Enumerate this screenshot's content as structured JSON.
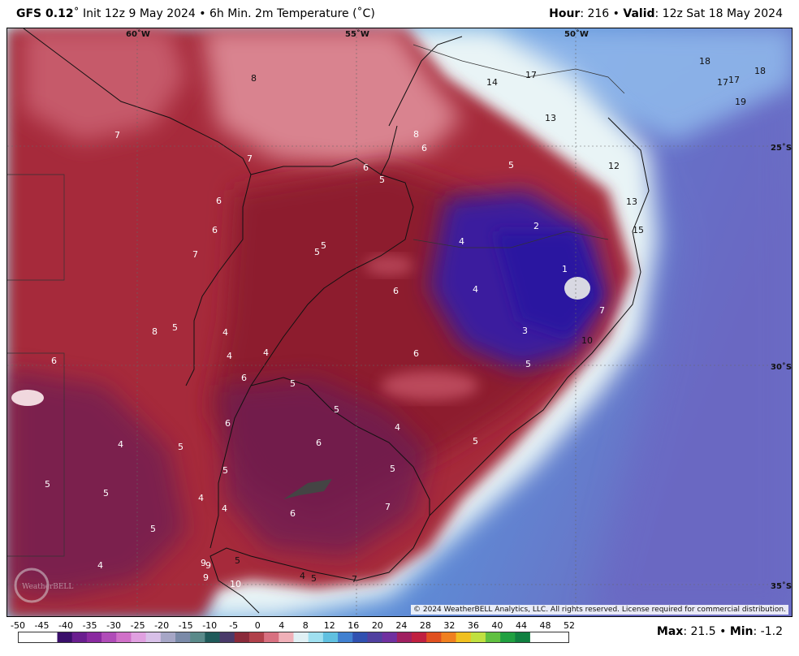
{
  "header": {
    "model": "GFS 0.12",
    "run": "˚ Init 12z 9 May 2024 • 6h Min. 2m Temperature (˚C)",
    "hour_label": "Hour",
    "hour_value": ": 216 • ",
    "valid_label": "Valid",
    "valid_value": ": 12z Sat 18 May 2024"
  },
  "map": {
    "lon_labels": [
      "60˚W",
      "55˚W",
      "50˚W"
    ],
    "lat_labels": [
      "25˚S",
      "30˚S",
      "35˚S"
    ],
    "point_values": [
      "8",
      "7",
      "7",
      "6",
      "6",
      "7",
      "6",
      "5",
      "5",
      "5",
      "8",
      "6",
      "14",
      "17",
      "13",
      "12",
      "18",
      "18",
      "17",
      "17",
      "19",
      "5",
      "4",
      "2",
      "1",
      "4",
      "3",
      "7",
      "10",
      "13",
      "15",
      "6",
      "6",
      "5",
      "5",
      "5",
      "6",
      "6",
      "8",
      "5",
      "4",
      "4",
      "4",
      "6",
      "5",
      "4",
      "6",
      "5",
      "4",
      "5",
      "5",
      "5",
      "5",
      "4",
      "4",
      "6",
      "7",
      "5",
      "4",
      "9",
      "9",
      "9",
      "10",
      "5",
      "4",
      "5",
      "7",
      "5"
    ],
    "colors": {
      "deep_purple": "#3a1aa8",
      "dark_red": "#8e1b2a",
      "red": "#a92b3c",
      "pink": "#d78a95",
      "ocean_cyan": "#9fe3ec",
      "ocean_blue": "#5f9fdf",
      "ocean_purple": "#6f77c7"
    },
    "logo_text": "WeatherBELL"
  },
  "copyright": "© 2024 WeatherBELL Analytics, LLC. All rights reserved. License required for commercial distribution.",
  "scale": {
    "labels": [
      "-50",
      "-45",
      "-40",
      "-35",
      "-30",
      "-25",
      "-20",
      "-15",
      "-10",
      "-5",
      "0",
      "4",
      "8",
      "12",
      "16",
      "20",
      "24",
      "28",
      "32",
      "36",
      "40",
      "44",
      "48",
      "52"
    ]
  },
  "stats": {
    "max_label": "Max",
    "max_value": ": 21.5 • ",
    "min_label": "Min",
    "min_value": ": -1.2"
  }
}
